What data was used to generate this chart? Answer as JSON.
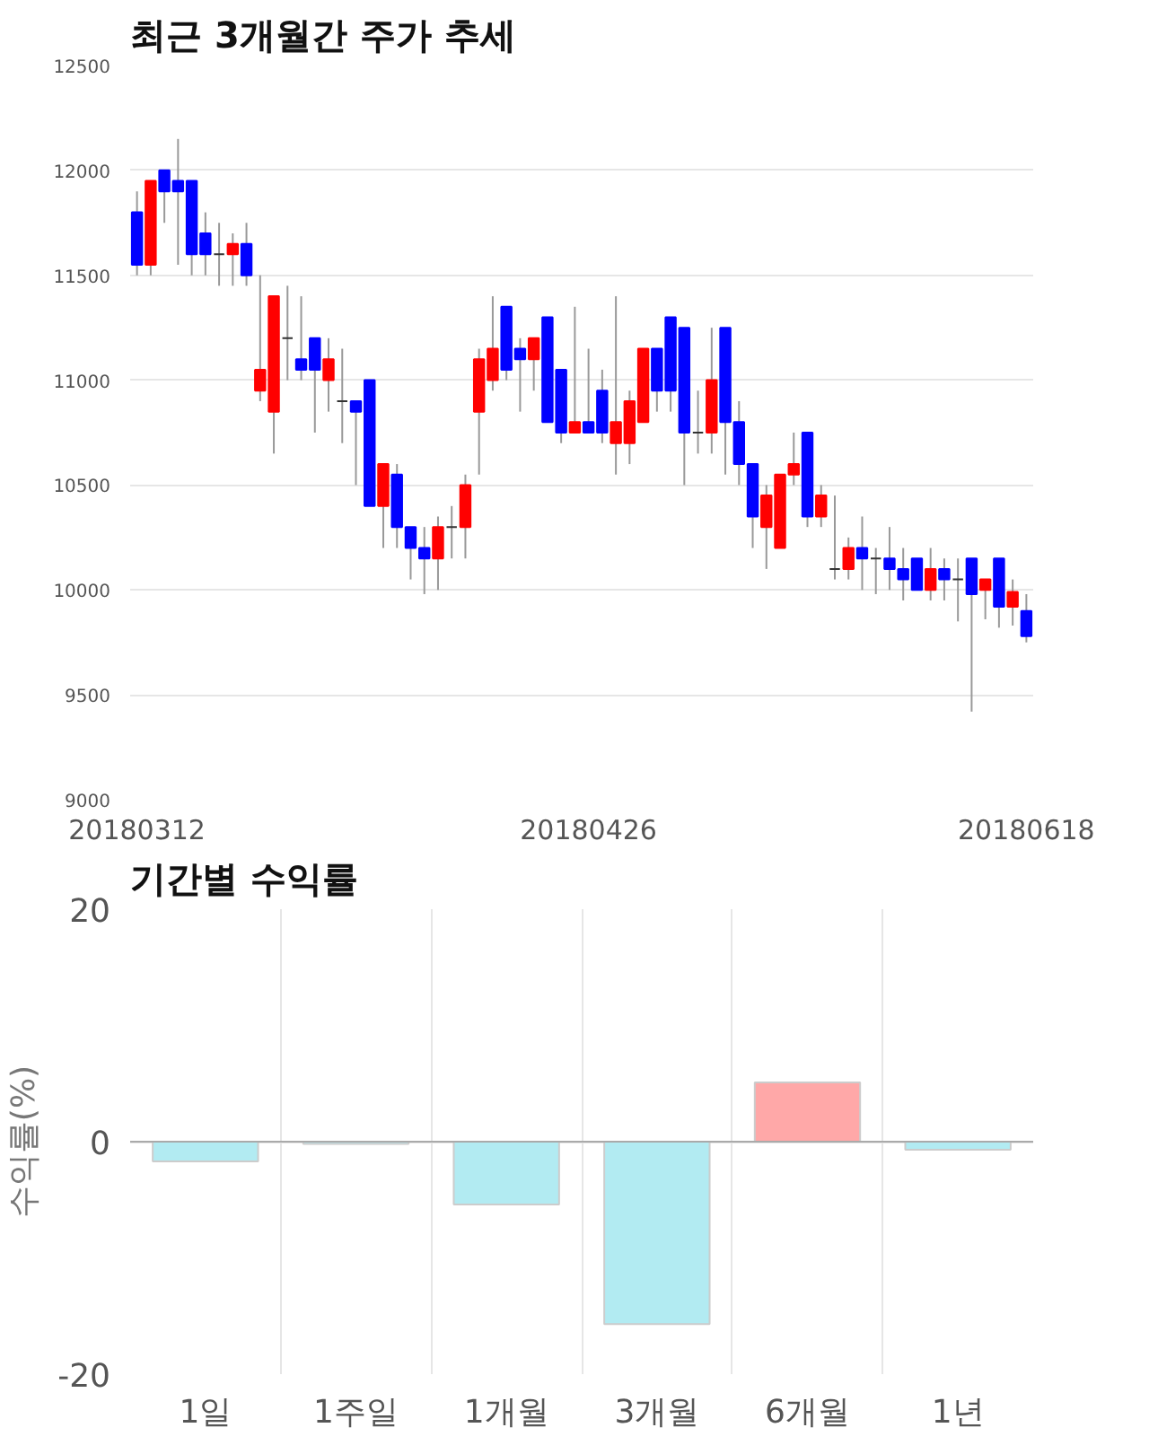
{
  "chart_data": [
    {
      "type": "candlestick",
      "title": "최근 3개월간 주가 추세",
      "categories": [
        "20180312",
        null,
        null,
        null,
        null,
        null,
        null,
        null,
        null,
        null,
        null,
        null,
        null,
        null,
        null,
        null,
        null,
        null,
        null,
        null,
        null,
        null,
        null,
        null,
        null,
        null,
        null,
        null,
        null,
        null,
        null,
        null,
        null,
        "20180426",
        null,
        null,
        null,
        null,
        null,
        null,
        null,
        null,
        null,
        null,
        null,
        null,
        null,
        null,
        null,
        null,
        null,
        null,
        null,
        null,
        null,
        null,
        null,
        null,
        null,
        null,
        null,
        null,
        null,
        null,
        null,
        "20180618"
      ],
      "ohlc": [
        [
          11800,
          11900,
          11500,
          11550
        ],
        [
          11550,
          11950,
          11500,
          11950
        ],
        [
          12000,
          12000,
          11750,
          11900
        ],
        [
          11950,
          12150,
          11550,
          11900
        ],
        [
          11950,
          11950,
          11500,
          11600
        ],
        [
          11700,
          11800,
          11500,
          11600
        ],
        [
          11600,
          11750,
          11450,
          11600
        ],
        [
          11600,
          11700,
          11450,
          11650
        ],
        [
          11650,
          11750,
          11450,
          11500
        ],
        [
          10950,
          11500,
          10900,
          11050
        ],
        [
          10850,
          11400,
          10650,
          11400
        ],
        [
          11200,
          11450,
          11000,
          11200
        ],
        [
          11100,
          11400,
          11000,
          11050
        ],
        [
          11200,
          11200,
          10750,
          11050
        ],
        [
          11000,
          11200,
          10850,
          11100
        ],
        [
          10900,
          11150,
          10700,
          10900
        ],
        [
          10900,
          10900,
          10500,
          10850
        ],
        [
          11000,
          11000,
          10400,
          10400
        ],
        [
          10400,
          10600,
          10200,
          10600
        ],
        [
          10550,
          10600,
          10200,
          10300
        ],
        [
          10300,
          10300,
          10050,
          10200
        ],
        [
          10200,
          10300,
          9980,
          10150
        ],
        [
          10150,
          10350,
          10000,
          10300
        ],
        [
          10300,
          10400,
          10150,
          10300
        ],
        [
          10300,
          10550,
          10150,
          10500
        ],
        [
          10850,
          11150,
          10550,
          11100
        ],
        [
          11000,
          11400,
          10950,
          11150
        ],
        [
          11350,
          11350,
          11000,
          11050
        ],
        [
          11150,
          11200,
          10850,
          11100
        ],
        [
          11100,
          11200,
          10950,
          11200
        ],
        [
          11300,
          11300,
          10800,
          10800
        ],
        [
          11050,
          11050,
          10700,
          10750
        ],
        [
          10750,
          11350,
          10750,
          10800
        ],
        [
          10800,
          11150,
          10750,
          10750
        ],
        [
          10950,
          11050,
          10700,
          10750
        ],
        [
          10700,
          11400,
          10550,
          10800
        ],
        [
          10700,
          10950,
          10600,
          10900
        ],
        [
          10800,
          11150,
          10800,
          11150
        ],
        [
          11150,
          11150,
          10850,
          10950
        ],
        [
          11300,
          11300,
          10850,
          10950
        ],
        [
          11250,
          11250,
          10500,
          10750
        ],
        [
          10750,
          10950,
          10650,
          10750
        ],
        [
          10750,
          11250,
          10650,
          11000
        ],
        [
          11250,
          11250,
          10550,
          10800
        ],
        [
          10800,
          10900,
          10500,
          10600
        ],
        [
          10600,
          10600,
          10200,
          10350
        ],
        [
          10300,
          10500,
          10100,
          10450
        ],
        [
          10200,
          10550,
          10200,
          10550
        ],
        [
          10550,
          10750,
          10500,
          10600
        ],
        [
          10750,
          10750,
          10300,
          10350
        ],
        [
          10350,
          10500,
          10300,
          10450
        ],
        [
          10100,
          10450,
          10050,
          10100
        ],
        [
          10100,
          10250,
          10050,
          10200
        ],
        [
          10200,
          10350,
          10000,
          10150
        ],
        [
          10150,
          10200,
          9980,
          10150
        ],
        [
          10150,
          10300,
          10000,
          10100
        ],
        [
          10100,
          10200,
          9950,
          10050
        ],
        [
          10150,
          10150,
          10000,
          10000
        ],
        [
          10000,
          10200,
          9950,
          10100
        ],
        [
          10100,
          10150,
          9950,
          10050
        ],
        [
          10050,
          10150,
          9850,
          10050
        ],
        [
          10150,
          10150,
          9420,
          9980
        ],
        [
          10000,
          10050,
          9860,
          10050
        ],
        [
          10150,
          10150,
          9820,
          9920
        ],
        [
          9920,
          10050,
          9830,
          9990
        ],
        [
          9900,
          9980,
          9750,
          9780
        ]
      ],
      "colors": [
        "#0000ff",
        "#ff0000",
        "#0000ff",
        "#0000ff",
        "#0000ff",
        "#0000ff",
        "#333333",
        "#ff0000",
        "#0000ff",
        "#ff0000",
        "#ff0000",
        "#333333",
        "#0000ff",
        "#0000ff",
        "#ff0000",
        "#333333",
        "#0000ff",
        "#0000ff",
        "#ff0000",
        "#0000ff",
        "#0000ff",
        "#0000ff",
        "#ff0000",
        "#333333",
        "#ff0000",
        "#ff0000",
        "#ff0000",
        "#0000ff",
        "#0000ff",
        "#ff0000",
        "#0000ff",
        "#0000ff",
        "#ff0000",
        "#0000ff",
        "#0000ff",
        "#ff0000",
        "#ff0000",
        "#ff0000",
        "#0000ff",
        "#0000ff",
        "#0000ff",
        "#333333",
        "#ff0000",
        "#0000ff",
        "#0000ff",
        "#0000ff",
        "#ff0000",
        "#ff0000",
        "#ff0000",
        "#0000ff",
        "#ff0000",
        "#333333",
        "#ff0000",
        "#0000ff",
        "#333333",
        "#0000ff",
        "#0000ff",
        "#0000ff",
        "#ff0000",
        "#0000ff",
        "#333333",
        "#0000ff",
        "#ff0000",
        "#0000ff",
        "#ff0000",
        "#0000ff"
      ],
      "ylim": [
        9000,
        12500
      ],
      "yticks": [
        9000,
        9500,
        10000,
        10500,
        11000,
        11500,
        12000,
        12500
      ],
      "grid": "y"
    },
    {
      "type": "bar",
      "title": "기간별 수익률",
      "ylabel": "수익률(%)",
      "categories": [
        "1일",
        "1주일",
        "1개월",
        "3개월",
        "6개월",
        "1년"
      ],
      "values": [
        -1.7,
        -0.2,
        -5.4,
        -15.7,
        5.1,
        -0.7
      ],
      "colors": [
        "#b2ebf2",
        "#b2ebf2",
        "#b2ebf2",
        "#b2ebf2",
        "#ffa8a8",
        "#b2ebf2"
      ],
      "ylim": [
        -20,
        20
      ],
      "yticks": [
        -20,
        0,
        20
      ],
      "grid": true
    }
  ]
}
